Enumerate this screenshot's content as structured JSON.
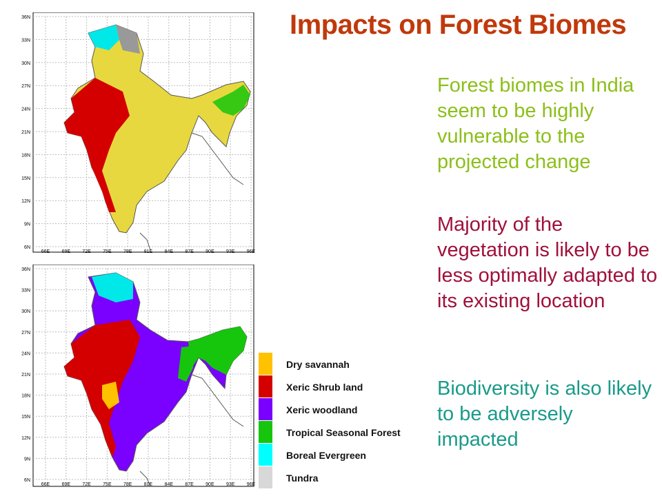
{
  "title": "Impacts on Forest Biomes",
  "paragraphs": [
    "Forest biomes in India seem to be highly vulnerable to the projected change",
    "Majority of  the vegetation is likely to be less optimally adapted to its existing location",
    "Biodiversity is also likely to be adversely impacted"
  ],
  "maps": [
    {
      "lat_labels": [
        "36N",
        "33N",
        "30N",
        "27N",
        "24N",
        "21N",
        "18N",
        "15N",
        "12N",
        "9N",
        "6N"
      ],
      "lon_labels": [
        "66E",
        "69E",
        "72E",
        "75E",
        "78E",
        "81E",
        "84E",
        "87E",
        "90E",
        "93E",
        "96E"
      ],
      "base_biome": "Dry savannah",
      "accent_biome": "Xeric Shrub land"
    },
    {
      "lat_labels": [
        "36N",
        "33N",
        "30N",
        "27N",
        "24N",
        "21N",
        "18N",
        "15N",
        "12N",
        "9N",
        "6N"
      ],
      "lon_labels": [
        "66E",
        "69E",
        "72E",
        "75E",
        "78E",
        "81E",
        "84E",
        "87E",
        "90E",
        "93E",
        "96E"
      ],
      "base_biome": "Xeric woodland",
      "accent_biome": "Xeric Shrub land"
    }
  ],
  "legend": [
    {
      "label": "Dry savannah",
      "color": "#ffc200"
    },
    {
      "label": "Xeric Shrub land",
      "color": "#d40000"
    },
    {
      "label": "Xeric woodland",
      "color": "#7a00ff"
    },
    {
      "label": "Tropical Seasonal Forest",
      "color": "#16c60c"
    },
    {
      "label": "Boreal Evergreen",
      "color": "#00ffff"
    },
    {
      "label": "Tundra",
      "color": "#d8d8d8"
    }
  ],
  "colors": {
    "dry_savannah_fill": "#e8d840",
    "xeric_shrub": "#d40000",
    "xeric_woodland": "#7a00ff",
    "tropical_forest": "#16c60c",
    "boreal": "#00e8e8",
    "tundra": "#999999"
  }
}
